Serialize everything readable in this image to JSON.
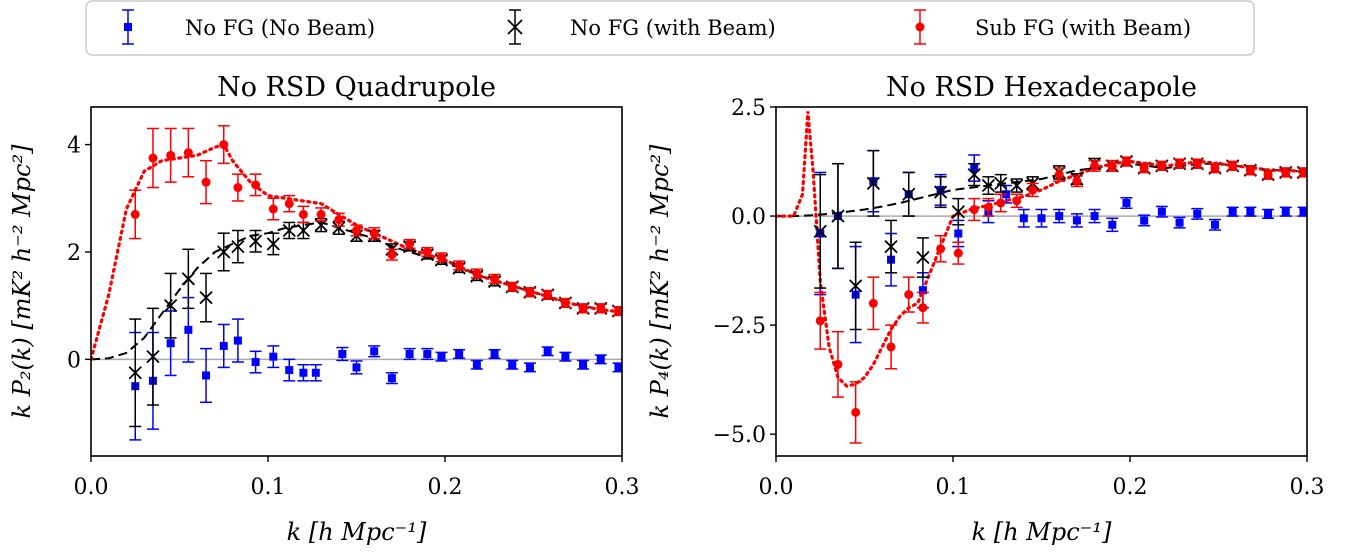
{
  "legend": {
    "location": "top-center",
    "entries": [
      {
        "label": "No FG (No Beam)",
        "color": "#0000ff",
        "marker": "square"
      },
      {
        "label": "No FG (with Beam)",
        "color": "#000000",
        "marker": "x"
      },
      {
        "label": "Sub FG (with Beam)",
        "color": "#ff0000",
        "marker": "circle"
      }
    ]
  },
  "chart_data": [
    {
      "type": "scatter",
      "title": "No RSD Quadrupole",
      "xlabel": "k [h Mpc⁻¹]",
      "ylabel": "k P₂(k) [mK² h⁻² Mpc²]",
      "xlim": [
        0.0,
        0.3
      ],
      "ylim": [
        -1.8,
        4.7
      ],
      "xticks": [
        "0.0",
        "0.1",
        "0.2",
        "0.3"
      ],
      "xtick_values": [
        0.0,
        0.1,
        0.2,
        0.3
      ],
      "yticks": [
        "0",
        "2",
        "4"
      ],
      "ytick_values": [
        0,
        2,
        4
      ],
      "grid": false,
      "zero_line": true,
      "model_curves": [
        {
          "name": "No FG (with Beam) model",
          "color": "#000000",
          "style": "dashed",
          "x": [
            0.0,
            0.01,
            0.02,
            0.03,
            0.04,
            0.05,
            0.06,
            0.07,
            0.08,
            0.09,
            0.1,
            0.11,
            0.12,
            0.13,
            0.14,
            0.15,
            0.16,
            0.17,
            0.18,
            0.19,
            0.2,
            0.21,
            0.22,
            0.23,
            0.24,
            0.25,
            0.26,
            0.27,
            0.28,
            0.29,
            0.3
          ],
          "y": [
            0.0,
            0.02,
            0.12,
            0.4,
            0.85,
            1.3,
            1.7,
            2.0,
            2.15,
            2.3,
            2.35,
            2.45,
            2.5,
            2.55,
            2.45,
            2.35,
            2.25,
            2.1,
            2.0,
            1.9,
            1.8,
            1.68,
            1.55,
            1.45,
            1.35,
            1.25,
            1.15,
            1.05,
            0.98,
            0.92,
            0.88
          ]
        },
        {
          "name": "Sub FG (with Beam) model",
          "color": "#ff0000",
          "style": "dotted",
          "x": [
            0.0,
            0.01,
            0.02,
            0.03,
            0.04,
            0.05,
            0.06,
            0.07,
            0.075,
            0.08,
            0.09,
            0.1,
            0.11,
            0.12,
            0.13,
            0.14,
            0.15,
            0.16,
            0.17,
            0.18,
            0.19,
            0.2,
            0.21,
            0.22,
            0.23,
            0.24,
            0.25,
            0.26,
            0.27,
            0.28,
            0.29,
            0.3
          ],
          "y": [
            0.0,
            1.2,
            2.8,
            3.5,
            3.7,
            3.75,
            3.8,
            3.95,
            4.0,
            3.7,
            3.3,
            3.05,
            3.0,
            2.95,
            2.9,
            2.7,
            2.5,
            2.35,
            2.2,
            2.05,
            1.95,
            1.85,
            1.7,
            1.55,
            1.45,
            1.35,
            1.25,
            1.15,
            1.05,
            0.97,
            0.92,
            0.88
          ]
        }
      ],
      "series": [
        {
          "name": "No FG (No Beam)",
          "color": "#0000ff",
          "marker": "square",
          "x": [
            0.025,
            0.035,
            0.045,
            0.055,
            0.065,
            0.075,
            0.083,
            0.093,
            0.103,
            0.112,
            0.12,
            0.127,
            0.142,
            0.15,
            0.16,
            0.17,
            0.18,
            0.19,
            0.198,
            0.208,
            0.218,
            0.228,
            0.238,
            0.248,
            0.258,
            0.268,
            0.278,
            0.288,
            0.298
          ],
          "y": [
            -0.5,
            -0.4,
            0.3,
            0.55,
            -0.3,
            0.25,
            0.35,
            -0.05,
            0.05,
            -0.2,
            -0.25,
            -0.25,
            0.1,
            -0.15,
            0.15,
            -0.35,
            0.1,
            0.1,
            0.05,
            0.1,
            -0.1,
            0.1,
            -0.1,
            -0.15,
            0.15,
            0.05,
            -0.1,
            0.0,
            -0.15
          ],
          "err": [
            1.0,
            0.9,
            0.6,
            0.6,
            0.5,
            0.4,
            0.4,
            0.2,
            0.2,
            0.2,
            0.15,
            0.15,
            0.12,
            0.12,
            0.1,
            0.1,
            0.1,
            0.1,
            0.08,
            0.08,
            0.08,
            0.08,
            0.08,
            0.08,
            0.08,
            0.08,
            0.08,
            0.08,
            0.08
          ]
        },
        {
          "name": "No FG (with Beam)",
          "color": "#000000",
          "marker": "x",
          "x": [
            0.025,
            0.035,
            0.045,
            0.055,
            0.065,
            0.075,
            0.083,
            0.093,
            0.103,
            0.112,
            0.12,
            0.13,
            0.14,
            0.15,
            0.16,
            0.17,
            0.18,
            0.19,
            0.198,
            0.208,
            0.218,
            0.228,
            0.238,
            0.248,
            0.258,
            0.268,
            0.278,
            0.288,
            0.298
          ],
          "y": [
            -0.25,
            0.05,
            1.0,
            1.5,
            1.15,
            2.0,
            2.1,
            2.2,
            2.15,
            2.4,
            2.4,
            2.5,
            2.45,
            2.3,
            2.3,
            2.05,
            2.1,
            1.95,
            1.85,
            1.7,
            1.55,
            1.45,
            1.35,
            1.25,
            1.2,
            1.05,
            0.95,
            0.95,
            0.9
          ],
          "err": [
            1.0,
            0.9,
            0.6,
            0.55,
            0.45,
            0.35,
            0.3,
            0.2,
            0.2,
            0.15,
            0.15,
            0.12,
            0.12,
            0.1,
            0.1,
            0.1,
            0.08,
            0.08,
            0.08,
            0.08,
            0.08,
            0.08,
            0.08,
            0.08,
            0.08,
            0.08,
            0.08,
            0.08,
            0.08
          ]
        },
        {
          "name": "Sub FG (with Beam)",
          "color": "#ff0000",
          "marker": "circle",
          "x": [
            0.025,
            0.035,
            0.045,
            0.055,
            0.065,
            0.075,
            0.083,
            0.093,
            0.103,
            0.112,
            0.12,
            0.13,
            0.14,
            0.15,
            0.16,
            0.17,
            0.18,
            0.19,
            0.198,
            0.208,
            0.218,
            0.228,
            0.238,
            0.248,
            0.258,
            0.268,
            0.278,
            0.288,
            0.298
          ],
          "y": [
            2.7,
            3.75,
            3.8,
            3.85,
            3.3,
            4.0,
            3.2,
            3.25,
            2.8,
            2.9,
            2.7,
            2.7,
            2.6,
            2.4,
            2.35,
            1.95,
            2.15,
            2.0,
            1.9,
            1.75,
            1.6,
            1.5,
            1.35,
            1.25,
            1.2,
            1.05,
            0.95,
            0.95,
            0.9
          ],
          "err": [
            0.45,
            0.55,
            0.5,
            0.45,
            0.4,
            0.35,
            0.25,
            0.2,
            0.2,
            0.15,
            0.15,
            0.12,
            0.12,
            0.1,
            0.1,
            0.1,
            0.08,
            0.08,
            0.08,
            0.08,
            0.08,
            0.08,
            0.08,
            0.08,
            0.08,
            0.08,
            0.08,
            0.08,
            0.08
          ]
        }
      ]
    },
    {
      "type": "scatter",
      "title": "No RSD Hexadecapole",
      "xlabel": "k [h Mpc⁻¹]",
      "ylabel": "k P₄(k) [mK² h⁻² Mpc²]",
      "xlim": [
        0.0,
        0.3
      ],
      "ylim": [
        -5.5,
        2.5
      ],
      "xticks": [
        "0.0",
        "0.1",
        "0.2",
        "0.3"
      ],
      "xtick_values": [
        0.0,
        0.1,
        0.2,
        0.3
      ],
      "yticks": [
        "−5.0",
        "−2.5",
        "0.0",
        "2.5"
      ],
      "ytick_values": [
        -5.0,
        -2.5,
        0.0,
        2.5
      ],
      "grid": false,
      "zero_line": true,
      "model_curves": [
        {
          "name": "No FG (with Beam) model",
          "color": "#000000",
          "style": "dashed",
          "x": [
            0.0,
            0.01,
            0.02,
            0.03,
            0.04,
            0.05,
            0.06,
            0.07,
            0.08,
            0.09,
            0.1,
            0.11,
            0.12,
            0.13,
            0.14,
            0.15,
            0.16,
            0.17,
            0.18,
            0.19,
            0.2,
            0.21,
            0.22,
            0.23,
            0.24,
            0.25,
            0.26,
            0.27,
            0.28,
            0.29,
            0.3
          ],
          "y": [
            0.0,
            0.0,
            0.02,
            0.05,
            0.1,
            0.15,
            0.22,
            0.3,
            0.4,
            0.5,
            0.6,
            0.65,
            0.7,
            0.75,
            0.8,
            0.85,
            0.95,
            1.05,
            1.1,
            1.15,
            1.2,
            1.15,
            1.1,
            1.15,
            1.2,
            1.2,
            1.15,
            1.1,
            1.05,
            1.05,
            1.0
          ]
        },
        {
          "name": "Sub FG (with Beam) model",
          "color": "#ff0000",
          "style": "dotted",
          "x": [
            0.0,
            0.01,
            0.015,
            0.018,
            0.021,
            0.025,
            0.03,
            0.035,
            0.04,
            0.045,
            0.05,
            0.055,
            0.06,
            0.065,
            0.07,
            0.075,
            0.08,
            0.085,
            0.09,
            0.095,
            0.1,
            0.11,
            0.12,
            0.13,
            0.14,
            0.15,
            0.16,
            0.17,
            0.18,
            0.19,
            0.2,
            0.21,
            0.22,
            0.23,
            0.24,
            0.25,
            0.26,
            0.27,
            0.28,
            0.29,
            0.3
          ],
          "y": [
            0.0,
            0.0,
            0.5,
            2.4,
            1.0,
            -1.5,
            -3.0,
            -3.7,
            -3.9,
            -3.85,
            -3.7,
            -3.4,
            -3.0,
            -2.6,
            -2.3,
            -2.1,
            -2.0,
            -1.5,
            -1.0,
            -0.5,
            0.0,
            0.15,
            0.25,
            0.35,
            0.45,
            0.6,
            0.8,
            0.95,
            1.1,
            1.2,
            1.25,
            1.2,
            1.15,
            1.2,
            1.25,
            1.2,
            1.15,
            1.1,
            1.05,
            1.05,
            1.0
          ]
        }
      ],
      "series": [
        {
          "name": "No FG (No Beam)",
          "color": "#0000ff",
          "marker": "square",
          "x": [
            0.025,
            0.035,
            0.045,
            0.055,
            0.065,
            0.075,
            0.083,
            0.093,
            0.103,
            0.112,
            0.12,
            0.13,
            0.14,
            0.15,
            0.16,
            0.17,
            0.18,
            0.19,
            0.198,
            0.208,
            0.218,
            0.228,
            0.238,
            0.248,
            0.258,
            0.268,
            0.278,
            0.288,
            0.298
          ],
          "y": [
            -0.4,
            0.0,
            -1.8,
            0.8,
            -1.0,
            0.5,
            -1.7,
            0.6,
            -0.4,
            1.1,
            0.1,
            0.5,
            -0.05,
            -0.05,
            0.0,
            -0.1,
            0.0,
            -0.2,
            0.3,
            -0.1,
            0.1,
            -0.15,
            0.05,
            -0.2,
            0.1,
            0.1,
            0.05,
            0.1,
            0.1
          ],
          "err": [
            1.4,
            1.2,
            1.1,
            0.7,
            0.6,
            0.5,
            0.4,
            0.35,
            0.3,
            0.3,
            0.25,
            0.2,
            0.2,
            0.2,
            0.15,
            0.15,
            0.15,
            0.15,
            0.12,
            0.12,
            0.12,
            0.12,
            0.12,
            0.12,
            0.1,
            0.1,
            0.1,
            0.1,
            0.1
          ]
        },
        {
          "name": "No FG (with Beam)",
          "color": "#000000",
          "marker": "x",
          "x": [
            0.025,
            0.035,
            0.045,
            0.055,
            0.065,
            0.075,
            0.083,
            0.093,
            0.103,
            0.112,
            0.12,
            0.127,
            0.136,
            0.145,
            0.16,
            0.17,
            0.18,
            0.19,
            0.198,
            0.208,
            0.218,
            0.228,
            0.238,
            0.248,
            0.258,
            0.268,
            0.278,
            0.288,
            0.298
          ],
          "y": [
            -0.35,
            0.0,
            -1.6,
            0.75,
            -0.7,
            0.5,
            -0.95,
            0.55,
            0.1,
            0.95,
            0.7,
            0.75,
            0.7,
            0.75,
            1.0,
            0.85,
            1.2,
            1.15,
            1.25,
            1.1,
            1.15,
            1.2,
            1.2,
            1.1,
            1.15,
            1.05,
            0.95,
            1.0,
            1.0
          ],
          "err": [
            1.3,
            1.2,
            1.0,
            0.75,
            0.6,
            0.5,
            0.45,
            0.35,
            0.3,
            0.25,
            0.2,
            0.2,
            0.15,
            0.15,
            0.15,
            0.12,
            0.12,
            0.12,
            0.1,
            0.1,
            0.1,
            0.1,
            0.1,
            0.1,
            0.1,
            0.1,
            0.1,
            0.1,
            0.1
          ]
        },
        {
          "name": "Sub FG (with Beam)",
          "color": "#ff0000",
          "marker": "circle",
          "x": [
            0.025,
            0.035,
            0.045,
            0.055,
            0.065,
            0.075,
            0.083,
            0.093,
            0.103,
            0.112,
            0.12,
            0.127,
            0.136,
            0.145,
            0.16,
            0.17,
            0.18,
            0.19,
            0.198,
            0.208,
            0.218,
            0.228,
            0.238,
            0.248,
            0.258,
            0.268,
            0.278,
            0.288,
            0.298
          ],
          "y": [
            -2.4,
            -3.4,
            -4.5,
            -2.0,
            -3.0,
            -1.8,
            -2.1,
            -0.75,
            -0.85,
            0.15,
            0.2,
            0.3,
            0.35,
            0.6,
            0.95,
            0.8,
            1.15,
            1.15,
            1.25,
            1.1,
            1.15,
            1.2,
            1.2,
            1.1,
            1.15,
            1.05,
            0.95,
            1.0,
            1.0
          ],
          "err": [
            0.65,
            0.75,
            0.7,
            0.6,
            0.5,
            0.4,
            0.35,
            0.3,
            0.25,
            0.25,
            0.2,
            0.2,
            0.15,
            0.15,
            0.15,
            0.12,
            0.12,
            0.12,
            0.1,
            0.1,
            0.1,
            0.1,
            0.1,
            0.1,
            0.1,
            0.1,
            0.1,
            0.1,
            0.1
          ]
        }
      ]
    }
  ]
}
